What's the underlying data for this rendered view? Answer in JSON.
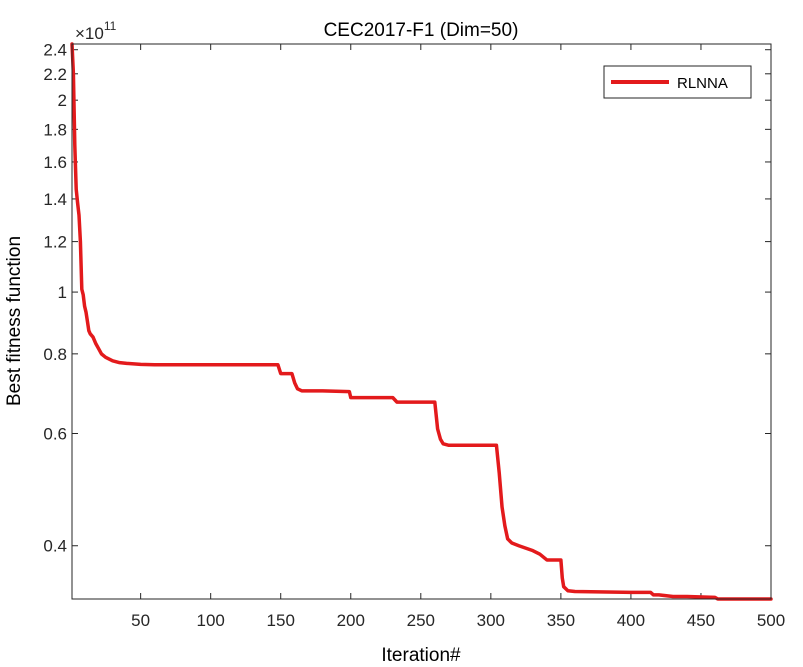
{
  "chart_data": {
    "type": "line",
    "title": "CEC2017-F1 (Dim=50)",
    "xlabel": "Iteration#",
    "ylabel": "Best fitness function",
    "y_scale": "log",
    "y_multiplier_label": "×10",
    "y_multiplier_exponent": "11",
    "xlim": [
      1,
      500
    ],
    "ylim": [
      0.33,
      2.45
    ],
    "x_ticks": [
      50,
      100,
      150,
      200,
      250,
      300,
      350,
      400,
      450,
      500
    ],
    "y_ticks": [
      0.4,
      0.6,
      0.8,
      1,
      1.2,
      1.4,
      1.6,
      1.8,
      2,
      2.2,
      2.4
    ],
    "y_tick_labels": [
      "0.4",
      "0.6",
      "0.8",
      "1",
      "1.2",
      "1.4",
      "1.6",
      "1.8",
      "2",
      "2.2",
      "2.4"
    ],
    "legend_position": "top-right",
    "series": [
      {
        "name": "RLNNA",
        "color": "#e31a1c",
        "points": [
          [
            1,
            2.45
          ],
          [
            2,
            2.2
          ],
          [
            3,
            1.7
          ],
          [
            4,
            1.45
          ],
          [
            5,
            1.38
          ],
          [
            6,
            1.32
          ],
          [
            7,
            1.2
          ],
          [
            8,
            1.01
          ],
          [
            9,
            0.99
          ],
          [
            10,
            0.95
          ],
          [
            11,
            0.93
          ],
          [
            12,
            0.9
          ],
          [
            13,
            0.87
          ],
          [
            14,
            0.86
          ],
          [
            16,
            0.85
          ],
          [
            18,
            0.83
          ],
          [
            20,
            0.815
          ],
          [
            22,
            0.8
          ],
          [
            25,
            0.79
          ],
          [
            30,
            0.78
          ],
          [
            35,
            0.775
          ],
          [
            40,
            0.773
          ],
          [
            50,
            0.77
          ],
          [
            60,
            0.769
          ],
          [
            100,
            0.769
          ],
          [
            148,
            0.769
          ],
          [
            150,
            0.745
          ],
          [
            158,
            0.745
          ],
          [
            160,
            0.72
          ],
          [
            162,
            0.705
          ],
          [
            165,
            0.7
          ],
          [
            180,
            0.7
          ],
          [
            199,
            0.698
          ],
          [
            200,
            0.683
          ],
          [
            230,
            0.683
          ],
          [
            233,
            0.672
          ],
          [
            260,
            0.672
          ],
          [
            262,
            0.61
          ],
          [
            264,
            0.588
          ],
          [
            266,
            0.578
          ],
          [
            270,
            0.575
          ],
          [
            290,
            0.575
          ],
          [
            304,
            0.575
          ],
          [
            306,
            0.52
          ],
          [
            308,
            0.46
          ],
          [
            310,
            0.43
          ],
          [
            312,
            0.41
          ],
          [
            315,
            0.404
          ],
          [
            320,
            0.4
          ],
          [
            330,
            0.393
          ],
          [
            335,
            0.388
          ],
          [
            340,
            0.38
          ],
          [
            350,
            0.38
          ],
          [
            351,
            0.356
          ],
          [
            352,
            0.345
          ],
          [
            355,
            0.34
          ],
          [
            360,
            0.339
          ],
          [
            400,
            0.338
          ],
          [
            414,
            0.338
          ],
          [
            416,
            0.335
          ],
          [
            420,
            0.335
          ],
          [
            430,
            0.333
          ],
          [
            440,
            0.333
          ],
          [
            460,
            0.332
          ],
          [
            462,
            0.329
          ],
          [
            465,
            0.328
          ],
          [
            500,
            0.328
          ]
        ]
      }
    ]
  }
}
